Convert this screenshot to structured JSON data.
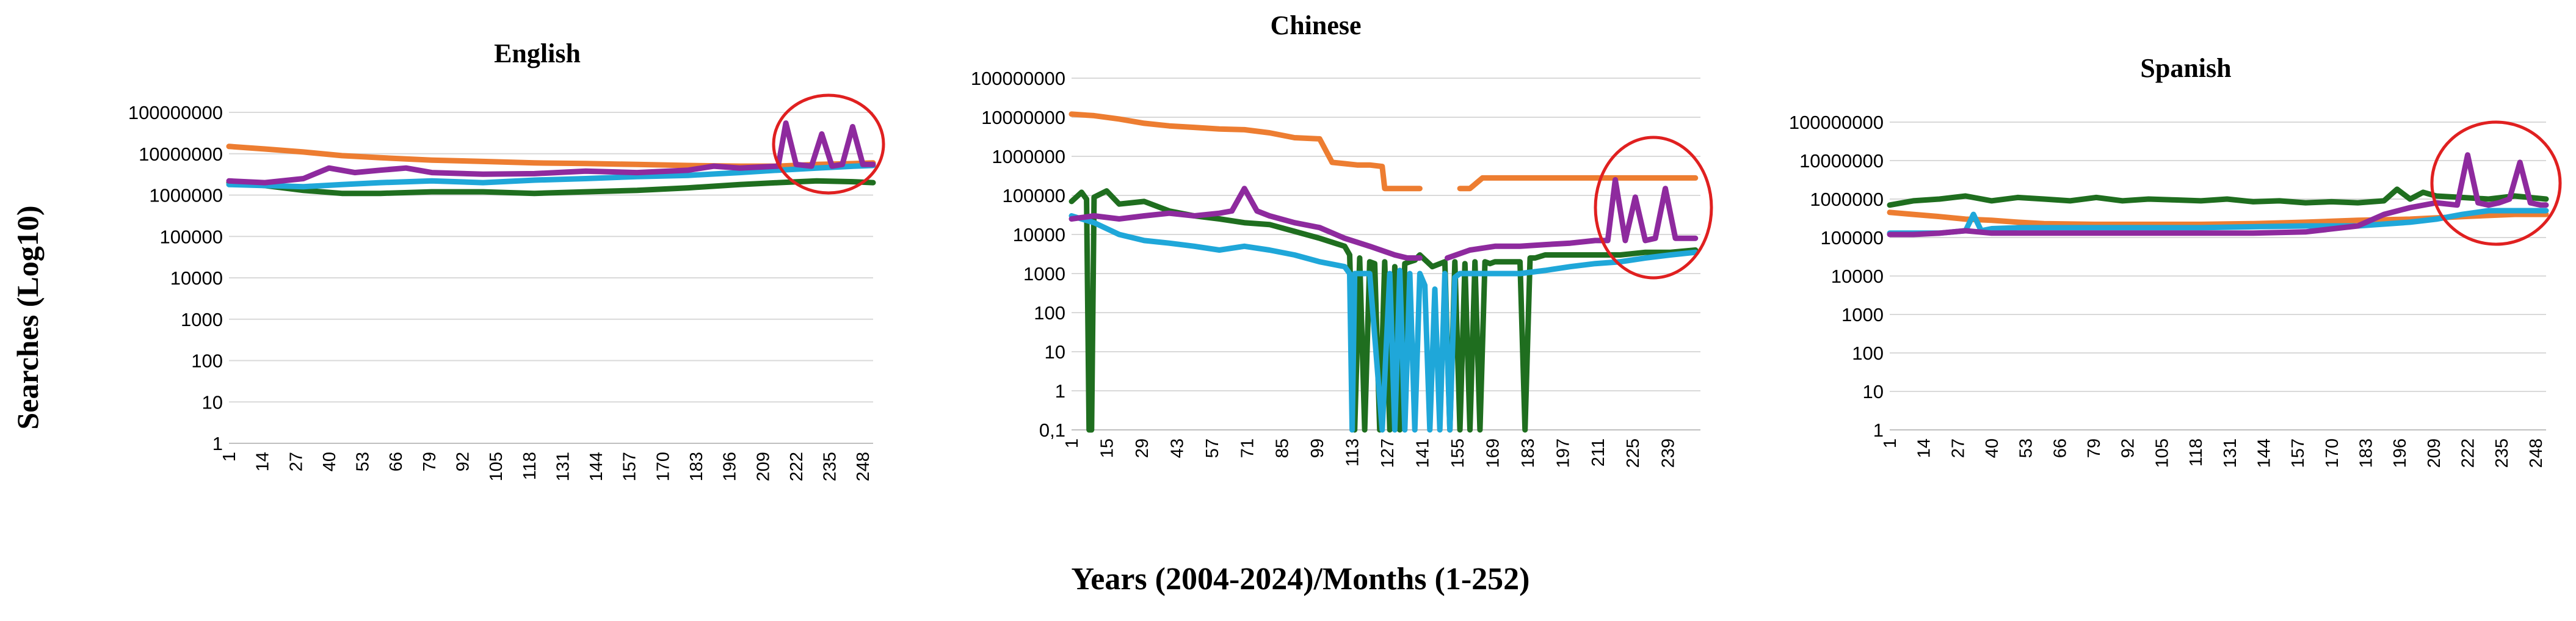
{
  "figure": {
    "ylabel": "Searches (Log10)",
    "xlabel": "Years (2004-2024)/Months (1-252)"
  },
  "colors": {
    "orange": "#ed7d31",
    "green": "#1f6e1f",
    "cyan": "#1fa7d9",
    "purple": "#8e2a9e",
    "highlight": "#e02020",
    "grid": "#d9d9d9"
  },
  "chart_data": [
    {
      "type": "line",
      "title": "English",
      "y_scale": "log",
      "y_ticks": [
        "1",
        "10",
        "100",
        "1000",
        "10000",
        "100000",
        "1000000",
        "10000000",
        "100000000"
      ],
      "x_ticks": [
        "1",
        "14",
        "27",
        "40",
        "53",
        "66",
        "79",
        "92",
        "105",
        "118",
        "131",
        "144",
        "157",
        "170",
        "183",
        "196",
        "209",
        "222",
        "235",
        "248"
      ],
      "x_range": [
        1,
        252
      ],
      "grid": true,
      "legend": "none",
      "highlight_circle": true,
      "series": [
        {
          "color": "orange",
          "x": [
            1,
            15,
            30,
            45,
            60,
            80,
            100,
            120,
            140,
            160,
            180,
            200,
            215,
            230,
            245,
            252
          ],
          "y": [
            15000000,
            13000000,
            11000000,
            9000000,
            8000000,
            7000000,
            6500000,
            6000000,
            5800000,
            5500000,
            5200000,
            5000000,
            5000000,
            5500000,
            5800000,
            6000000
          ]
        },
        {
          "color": "green",
          "x": [
            1,
            15,
            30,
            45,
            60,
            80,
            100,
            120,
            140,
            160,
            180,
            200,
            215,
            230,
            245,
            252
          ],
          "y": [
            2000000,
            1700000,
            1300000,
            1100000,
            1100000,
            1200000,
            1200000,
            1100000,
            1200000,
            1300000,
            1500000,
            1800000,
            2000000,
            2200000,
            2100000,
            2000000
          ]
        },
        {
          "color": "cyan",
          "x": [
            1,
            15,
            30,
            45,
            60,
            80,
            100,
            120,
            140,
            160,
            180,
            200,
            215,
            230,
            245,
            252
          ],
          "y": [
            1800000,
            1700000,
            1600000,
            1800000,
            2000000,
            2200000,
            2000000,
            2300000,
            2500000,
            2800000,
            3000000,
            3500000,
            4000000,
            4500000,
            5000000,
            5200000
          ]
        },
        {
          "color": "purple",
          "x": [
            1,
            15,
            30,
            40,
            50,
            60,
            70,
            80,
            100,
            120,
            140,
            160,
            180,
            190,
            200,
            215,
            218,
            222,
            228,
            232,
            236,
            240,
            244,
            248,
            252
          ],
          "y": [
            2200000,
            2000000,
            2500000,
            4500000,
            3500000,
            4000000,
            4500000,
            3500000,
            3200000,
            3300000,
            3800000,
            3500000,
            4000000,
            5000000,
            4500000,
            5000000,
            55000000,
            5500000,
            5000000,
            30000000,
            5000000,
            5500000,
            45000000,
            5500000,
            5500000
          ]
        }
      ]
    },
    {
      "type": "line",
      "title": "Chinese",
      "y_scale": "log",
      "y_ticks": [
        "0,1",
        "1",
        "10",
        "100",
        "1000",
        "10000",
        "100000",
        "1000000",
        "10000000",
        "100000000"
      ],
      "x_ticks": [
        "1",
        "15",
        "29",
        "43",
        "57",
        "71",
        "85",
        "99",
        "113",
        "127",
        "141",
        "155",
        "169",
        "183",
        "197",
        "211",
        "225",
        "239"
      ],
      "x_range": [
        1,
        252
      ],
      "grid": true,
      "legend": "none",
      "highlight_circle": true,
      "series": [
        {
          "color": "orange",
          "x": [
            1,
            10,
            20,
            30,
            40,
            50,
            60,
            70,
            80,
            90,
            100,
            105,
            110,
            115,
            120,
            125,
            126,
            130,
            135,
            140,
            141,
            142,
            143,
            144,
            145,
            146,
            147,
            148,
            149,
            150,
            151,
            152,
            155,
            156,
            160,
            165,
            170,
            180,
            190,
            200,
            210,
            220,
            230,
            240,
            250
          ],
          "y": [
            12000000,
            11000000,
            9000000,
            7000000,
            6000000,
            5500000,
            5000000,
            4800000,
            4000000,
            3000000,
            2800000,
            700000,
            650000,
            600000,
            600000,
            550000,
            150000,
            150000,
            150000,
            150000,
            null,
            null,
            null,
            null,
            null,
            null,
            null,
            null,
            null,
            null,
            null,
            null,
            null,
            150000,
            150000,
            280000,
            280000,
            280000,
            280000,
            280000,
            280000,
            280000,
            280000,
            280000,
            280000
          ]
        },
        {
          "color": "green",
          "x": [
            1,
            5,
            7,
            8,
            9,
            10,
            15,
            20,
            30,
            40,
            50,
            60,
            70,
            80,
            90,
            100,
            110,
            112,
            114,
            116,
            118,
            120,
            122,
            124,
            126,
            128,
            130,
            132,
            134,
            136,
            138,
            140,
            145,
            150,
            152,
            154,
            156,
            158,
            160,
            162,
            164,
            166,
            168,
            170,
            175,
            180,
            182,
            184,
            186,
            190,
            200,
            210,
            220,
            230,
            240,
            250
          ],
          "y": [
            70000,
            120000,
            80000,
            0.1,
            0.1,
            90000,
            130000,
            60000,
            70000,
            40000,
            30000,
            25000,
            20000,
            18000,
            12000,
            8000,
            5000,
            3000,
            0.01,
            2500,
            0.01,
            2000,
            1800,
            0.01,
            2000,
            0.01,
            1500,
            0.01,
            1800,
            2000,
            2200,
            3000,
            1500,
            2000,
            0.01,
            2000,
            0.01,
            1800,
            0.01,
            2000,
            0.01,
            2000,
            1800,
            2000,
            2000,
            2000,
            0.01,
            2500,
            2500,
            3000,
            3000,
            3000,
            3000,
            3500,
            3500,
            4000
          ]
        },
        {
          "color": "cyan",
          "x": [
            1,
            10,
            20,
            30,
            40,
            50,
            60,
            70,
            80,
            90,
            100,
            110,
            112,
            113,
            114,
            120,
            125,
            128,
            130,
            132,
            134,
            136,
            138,
            140,
            142,
            144,
            146,
            148,
            150,
            152,
            154,
            156,
            160,
            170,
            180,
            190,
            200,
            210,
            220,
            230,
            240,
            250
          ],
          "y": [
            30000,
            20000,
            10000,
            7000,
            6000,
            5000,
            4000,
            5000,
            4000,
            3000,
            2000,
            1500,
            1000,
            0.01,
            1000,
            1000,
            0.01,
            1000,
            0.01,
            1200,
            0.01,
            1000,
            0.01,
            1000,
            500,
            0.01,
            400,
            0.01,
            1000,
            0.01,
            800,
            1000,
            1000,
            1000,
            1000,
            1200,
            1500,
            1800,
            2000,
            2500,
            3000,
            3500
          ]
        },
        {
          "color": "purple",
          "x": [
            1,
            10,
            20,
            30,
            40,
            50,
            60,
            65,
            70,
            75,
            80,
            90,
            100,
            110,
            120,
            130,
            135,
            140,
            141,
            150,
            151,
            160,
            170,
            180,
            190,
            200,
            210,
            215,
            218,
            222,
            226,
            230,
            234,
            238,
            242,
            246,
            250
          ],
          "y": [
            25000,
            30000,
            25000,
            30000,
            35000,
            30000,
            35000,
            40000,
            150000,
            40000,
            30000,
            20000,
            15000,
            8000,
            5000,
            3000,
            2500,
            2500,
            null,
            null,
            2500,
            4000,
            5000,
            5000,
            5500,
            6000,
            7000,
            7000,
            250000,
            7000,
            90000,
            7000,
            8000,
            150000,
            8000,
            8000,
            8000
          ]
        }
      ]
    },
    {
      "type": "line",
      "title": "Spanish",
      "y_scale": "log",
      "y_ticks": [
        "1",
        "10",
        "100",
        "1000",
        "10000",
        "100000",
        "1000000",
        "10000000",
        "100000000"
      ],
      "x_ticks": [
        "1",
        "14",
        "27",
        "40",
        "53",
        "66",
        "79",
        "92",
        "105",
        "118",
        "131",
        "144",
        "157",
        "170",
        "183",
        "196",
        "209",
        "222",
        "235",
        "248"
      ],
      "x_range": [
        1,
        252
      ],
      "grid": true,
      "legend": "none",
      "highlight_circle": true,
      "series": [
        {
          "color": "orange",
          "x": [
            1,
            10,
            20,
            30,
            40,
            50,
            60,
            80,
            100,
            120,
            140,
            160,
            180,
            200,
            220,
            240,
            252
          ],
          "y": [
            450000,
            400000,
            350000,
            300000,
            280000,
            250000,
            230000,
            220000,
            220000,
            220000,
            230000,
            250000,
            280000,
            300000,
            350000,
            400000,
            400000
          ]
        },
        {
          "color": "green",
          "x": [
            1,
            10,
            20,
            30,
            40,
            50,
            60,
            70,
            80,
            90,
            100,
            110,
            120,
            130,
            140,
            150,
            160,
            170,
            180,
            190,
            195,
            200,
            205,
            210,
            220,
            230,
            240,
            252
          ],
          "y": [
            700000,
            900000,
            1000000,
            1200000,
            900000,
            1100000,
            1000000,
            900000,
            1100000,
            900000,
            1000000,
            950000,
            900000,
            1000000,
            850000,
            900000,
            800000,
            850000,
            800000,
            900000,
            1800000,
            1000000,
            1500000,
            1200000,
            1100000,
            1000000,
            1200000,
            1000000
          ]
        },
        {
          "color": "cyan",
          "x": [
            1,
            10,
            20,
            30,
            33,
            36,
            40,
            50,
            60,
            80,
            100,
            120,
            140,
            160,
            180,
            200,
            210,
            220,
            230,
            240,
            252
          ],
          "y": [
            130000,
            130000,
            130000,
            150000,
            400000,
            150000,
            170000,
            180000,
            180000,
            180000,
            180000,
            180000,
            190000,
            200000,
            200000,
            250000,
            300000,
            400000,
            500000,
            500000,
            500000
          ]
        },
        {
          "color": "purple",
          "x": [
            1,
            10,
            20,
            30,
            40,
            50,
            60,
            80,
            100,
            120,
            140,
            160,
            180,
            190,
            200,
            210,
            218,
            222,
            226,
            230,
            234,
            238,
            242,
            246,
            250,
            252
          ],
          "y": [
            120000,
            120000,
            130000,
            150000,
            130000,
            130000,
            130000,
            130000,
            130000,
            130000,
            130000,
            140000,
            200000,
            400000,
            600000,
            800000,
            700000,
            14000000,
            800000,
            700000,
            800000,
            1000000,
            9000000,
            800000,
            700000,
            700000
          ]
        }
      ]
    }
  ]
}
